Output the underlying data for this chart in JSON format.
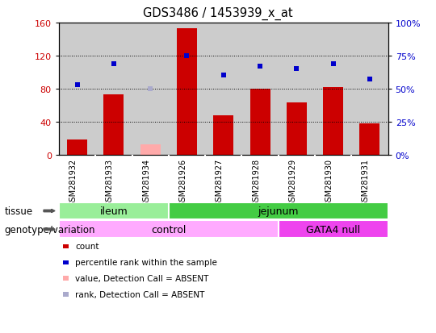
{
  "title": "GDS3486 / 1453939_x_at",
  "samples": [
    "GSM281932",
    "GSM281933",
    "GSM281934",
    "GSM281926",
    "GSM281927",
    "GSM281928",
    "GSM281929",
    "GSM281930",
    "GSM281931"
  ],
  "bar_values": [
    18,
    73,
    12,
    153,
    47,
    80,
    63,
    82,
    38
  ],
  "bar_absent": [
    false,
    false,
    true,
    false,
    false,
    false,
    false,
    false,
    false
  ],
  "percentile_values": [
    53,
    69,
    50,
    75,
    60,
    67,
    65,
    69,
    57
  ],
  "percentile_absent": [
    false,
    false,
    true,
    false,
    false,
    false,
    false,
    false,
    false
  ],
  "bar_color": "#cc0000",
  "bar_absent_color": "#ffaaaa",
  "dot_color": "#0000cc",
  "dot_absent_color": "#aaaacc",
  "ylim_left": [
    0,
    160
  ],
  "ylim_right": [
    0,
    100
  ],
  "yticks_left": [
    0,
    40,
    80,
    120,
    160
  ],
  "ytick_labels_left": [
    "0",
    "40",
    "80",
    "120",
    "160"
  ],
  "yticks_right": [
    0,
    25,
    50,
    75,
    100
  ],
  "ytick_labels_right": [
    "0%",
    "25%",
    "50%",
    "75%",
    "100%"
  ],
  "tissue_groups": [
    {
      "label": "ileum",
      "start": 0,
      "end": 3,
      "color": "#99ee99"
    },
    {
      "label": "jejunum",
      "start": 3,
      "end": 9,
      "color": "#44cc44"
    }
  ],
  "genotype_groups": [
    {
      "label": "control",
      "start": 0,
      "end": 6,
      "color": "#ffaaff"
    },
    {
      "label": "GATA4 null",
      "start": 6,
      "end": 9,
      "color": "#ee44ee"
    }
  ],
  "tissue_label": "tissue",
  "genotype_label": "genotype/variation",
  "legend_items": [
    {
      "label": "count",
      "color": "#cc0000"
    },
    {
      "label": "percentile rank within the sample",
      "color": "#0000cc"
    },
    {
      "label": "value, Detection Call = ABSENT",
      "color": "#ffaaaa"
    },
    {
      "label": "rank, Detection Call = ABSENT",
      "color": "#aaaacc"
    }
  ],
  "bg_color": "#cccccc",
  "plot_bg": "#ffffff"
}
